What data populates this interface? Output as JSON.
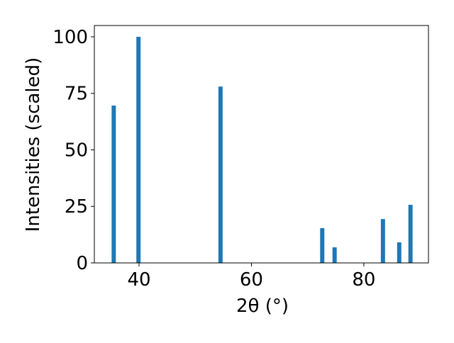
{
  "chart_data": {
    "type": "bar",
    "xlabel": "2θ (°)",
    "ylabel": "Intensities (scaled)",
    "x": [
      35.5,
      39.9,
      54.5,
      72.6,
      74.8,
      83.4,
      86.3,
      88.3
    ],
    "values": [
      69.6,
      100,
      78,
      15.4,
      6.9,
      19.4,
      9.1,
      25.7
    ],
    "bar_width": 0.75,
    "color": "#1f77b4",
    "xlim": [
      32.05,
      91.5
    ],
    "xticks": [
      40,
      60,
      80
    ],
    "ylim": [
      0,
      105
    ],
    "yticks": [
      0,
      25,
      50,
      75,
      100
    ]
  }
}
